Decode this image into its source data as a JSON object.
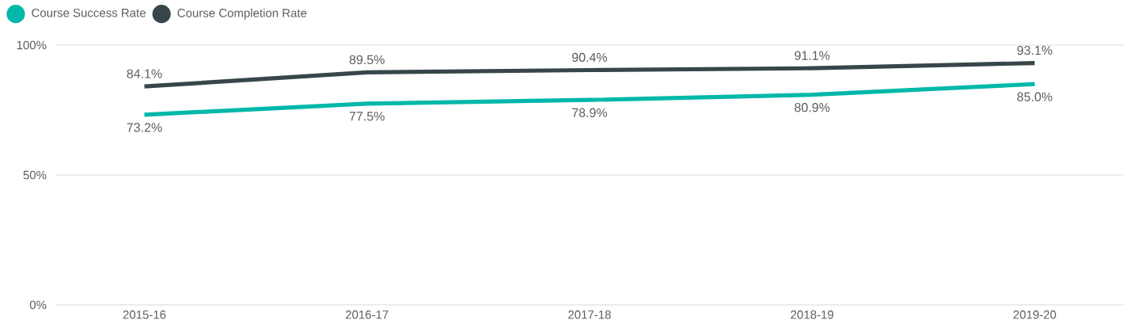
{
  "chart_data": {
    "type": "line",
    "categories": [
      "2015-16",
      "2016-17",
      "2017-18",
      "2018-19",
      "2019-20"
    ],
    "series": [
      {
        "name": "Course Success Rate",
        "color": "#01b8aa",
        "values": [
          73.2,
          77.5,
          78.9,
          80.9,
          85.0
        ],
        "value_labels": [
          "73.2%",
          "77.5%",
          "78.9%",
          "80.9%",
          "85.0%"
        ]
      },
      {
        "name": "Course Completion Rate",
        "color": "#374649",
        "values": [
          84.1,
          89.5,
          90.4,
          91.1,
          93.1
        ],
        "value_labels": [
          "84.1%",
          "89.5%",
          "90.4%",
          "91.1%",
          "93.1%"
        ]
      }
    ],
    "ylim": [
      0,
      100
    ],
    "yticks": [
      {
        "value": 0,
        "label": "0%"
      },
      {
        "value": 50,
        "label": "50%"
      },
      {
        "value": 100,
        "label": "100%"
      }
    ],
    "grid": "y",
    "legend": "top left",
    "marker": "none",
    "line_style": "solid"
  }
}
